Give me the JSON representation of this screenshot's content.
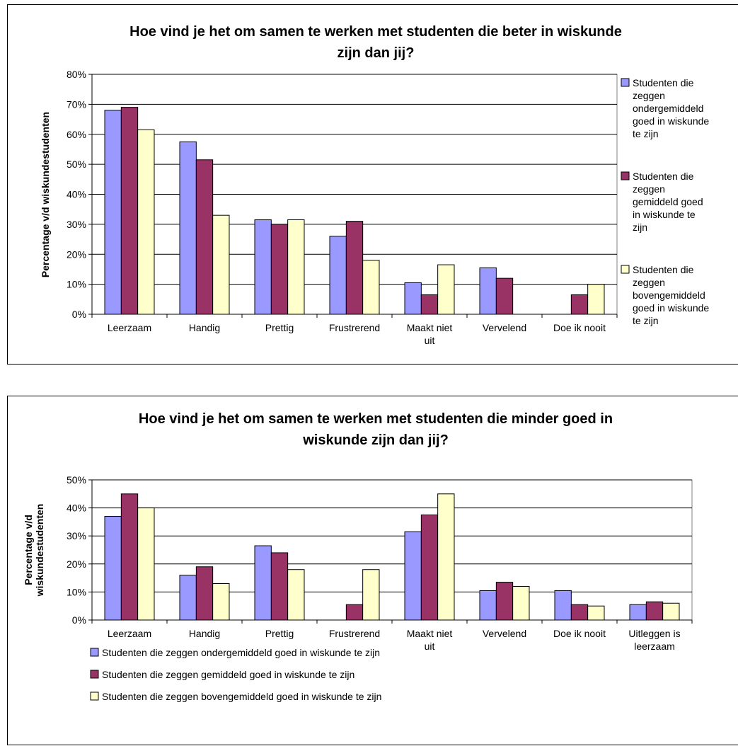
{
  "colors": {
    "series1": "#9999ff",
    "series2": "#993366",
    "series3": "#ffffcc",
    "gridline": "#000000"
  },
  "chart_data": [
    {
      "type": "bar",
      "title_lines": [
        "Hoe vind je het om samen te werken met studenten die beter in wiskunde",
        "zijn dan jij?"
      ],
      "xlabel": "",
      "ylabel": "Percentage v/d wiskundestudenten",
      "ylim": [
        0,
        80
      ],
      "yticks": [
        "0%",
        "10%",
        "20%",
        "30%",
        "40%",
        "50%",
        "60%",
        "70%",
        "80%"
      ],
      "ytick_values": [
        0,
        10,
        20,
        30,
        40,
        50,
        60,
        70,
        80
      ],
      "grid": true,
      "legend_position": "right",
      "categories": [
        [
          "Leerzaam"
        ],
        [
          "Handig"
        ],
        [
          "Prettig"
        ],
        [
          "Frustrerend"
        ],
        [
          "Maakt niet",
          "uit"
        ],
        [
          "Vervelend"
        ],
        [
          "Doe ik nooit"
        ]
      ],
      "series": [
        {
          "name_lines": [
            "Studenten die",
            "zeggen",
            "ondergemiddeld",
            "goed in wiskunde",
            "te zijn"
          ],
          "values": [
            68,
            57.5,
            31.5,
            26,
            10.5,
            15.5,
            0
          ]
        },
        {
          "name_lines": [
            "Studenten die",
            "zeggen",
            "gemiddeld goed",
            "in wiskunde te",
            "zijn"
          ],
          "values": [
            69,
            51.5,
            30,
            31,
            6.5,
            12,
            6.5
          ]
        },
        {
          "name_lines": [
            "Studenten die",
            "zeggen",
            "bovengemiddeld",
            "goed in wiskunde",
            "te zijn"
          ],
          "values": [
            61.5,
            33,
            31.5,
            18,
            16.5,
            0,
            10
          ]
        }
      ]
    },
    {
      "type": "bar",
      "title_lines": [
        "Hoe vind je het om samen te werken met studenten die minder goed in",
        "wiskunde zijn dan jij?"
      ],
      "xlabel": "",
      "ylabel_lines": [
        "Percentage v/d",
        "wiskundestudenten"
      ],
      "ylim": [
        0,
        50
      ],
      "yticks": [
        "0%",
        "10%",
        "20%",
        "30%",
        "40%",
        "50%"
      ],
      "ytick_values": [
        0,
        10,
        20,
        30,
        40,
        50
      ],
      "grid": true,
      "legend_position": "bottom",
      "categories": [
        [
          "Leerzaam"
        ],
        [
          "Handig"
        ],
        [
          "Prettig"
        ],
        [
          "Frustrerend"
        ],
        [
          "Maakt niet",
          "uit"
        ],
        [
          "Vervelend"
        ],
        [
          "Doe ik nooit"
        ],
        [
          "Uitleggen is",
          "leerzaam"
        ]
      ],
      "series": [
        {
          "name": "Studenten die zeggen ondergemiddeld goed in wiskunde te zijn",
          "values": [
            37,
            16,
            26.5,
            0,
            31.5,
            10.5,
            10.5,
            5.5
          ]
        },
        {
          "name": "Studenten die zeggen gemiddeld goed in wiskunde te zijn",
          "values": [
            45,
            19,
            24,
            5.5,
            37.5,
            13.5,
            5.5,
            6.5
          ]
        },
        {
          "name": "Studenten die zeggen bovengemiddeld goed in wiskunde te zijn",
          "values": [
            40,
            13,
            18,
            18,
            45,
            12,
            5,
            6
          ]
        }
      ]
    }
  ]
}
